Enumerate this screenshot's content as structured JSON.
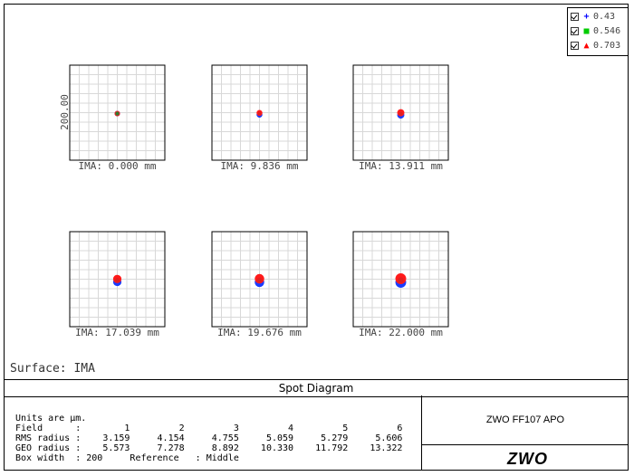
{
  "legend": [
    {
      "symbol": "+",
      "label": "0.43",
      "color": "#0000ff"
    },
    {
      "symbol": "■",
      "label": "0.546",
      "color": "#00cc00"
    },
    {
      "symbol": "▲",
      "label": "0.703",
      "color": "#ff0000"
    }
  ],
  "scale_label": "200.00",
  "surface_label": "Surface: IMA",
  "plot_title": "Spot Diagram",
  "lens_name": "ZWO FF107 APO",
  "logo_text": "ZWO",
  "info": {
    "units": "Units are µm.",
    "field_row": "Field      :        1         2         3         4         5         6",
    "rms_row": "RMS radius :    3.159     4.154     4.755     5.059     5.279     5.606",
    "geo_row": "GEO radius :    5.573     7.278     8.892    10.330    11.792    13.322",
    "box_row": "Box width  : 200     Reference   : Middle"
  },
  "chart_data": {
    "type": "scatter",
    "title": "Spot Diagram",
    "units": "µm",
    "box_width": 200,
    "reference": "Middle",
    "surface": "IMA",
    "wavelengths": [
      "0.43",
      "0.546",
      "0.703"
    ],
    "fields": [
      {
        "field": 1,
        "label": "IMA: 0.000 mm",
        "rms_radius": 3.159,
        "geo_radius": 5.573
      },
      {
        "field": 2,
        "label": "IMA: 9.836 mm",
        "rms_radius": 4.154,
        "geo_radius": 7.278
      },
      {
        "field": 3,
        "label": "IMA: 13.911 mm",
        "rms_radius": 4.755,
        "geo_radius": 8.892
      },
      {
        "field": 4,
        "label": "IMA: 17.039 mm",
        "rms_radius": 5.059,
        "geo_radius": 10.33
      },
      {
        "field": 5,
        "label": "IMA: 19.676 mm",
        "rms_radius": 5.279,
        "geo_radius": 11.792
      },
      {
        "field": 6,
        "label": "IMA: 22.000 mm",
        "rms_radius": 5.606,
        "geo_radius": 13.322
      }
    ],
    "grid": true
  }
}
